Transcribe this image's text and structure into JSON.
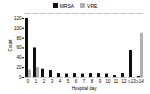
{
  "chart_data": {
    "type": "bar",
    "categories": [
      "0",
      "1",
      "2",
      "3",
      "4",
      "5",
      "6",
      "7",
      "8",
      "9",
      "10",
      "11",
      "12",
      "≥13",
      "≥14"
    ],
    "series": [
      {
        "name": "MRSA",
        "color": "#111111",
        "values": [
          120,
          60,
          17,
          14,
          8,
          7,
          8,
          7,
          8,
          8,
          7,
          4,
          8,
          55,
          2
        ]
      },
      {
        "name": "VRE",
        "color": "#b0b0b0",
        "values": [
          15,
          20,
          0,
          0,
          0,
          0,
          0,
          0,
          0,
          0,
          0,
          0,
          0,
          0,
          90
        ]
      }
    ],
    "xlabel": "Hospital day",
    "ylabel": "Count",
    "ylim": [
      0,
      130
    ],
    "yticks": [
      0,
      20,
      40,
      60,
      80,
      100,
      120
    ],
    "legend": "top"
  }
}
